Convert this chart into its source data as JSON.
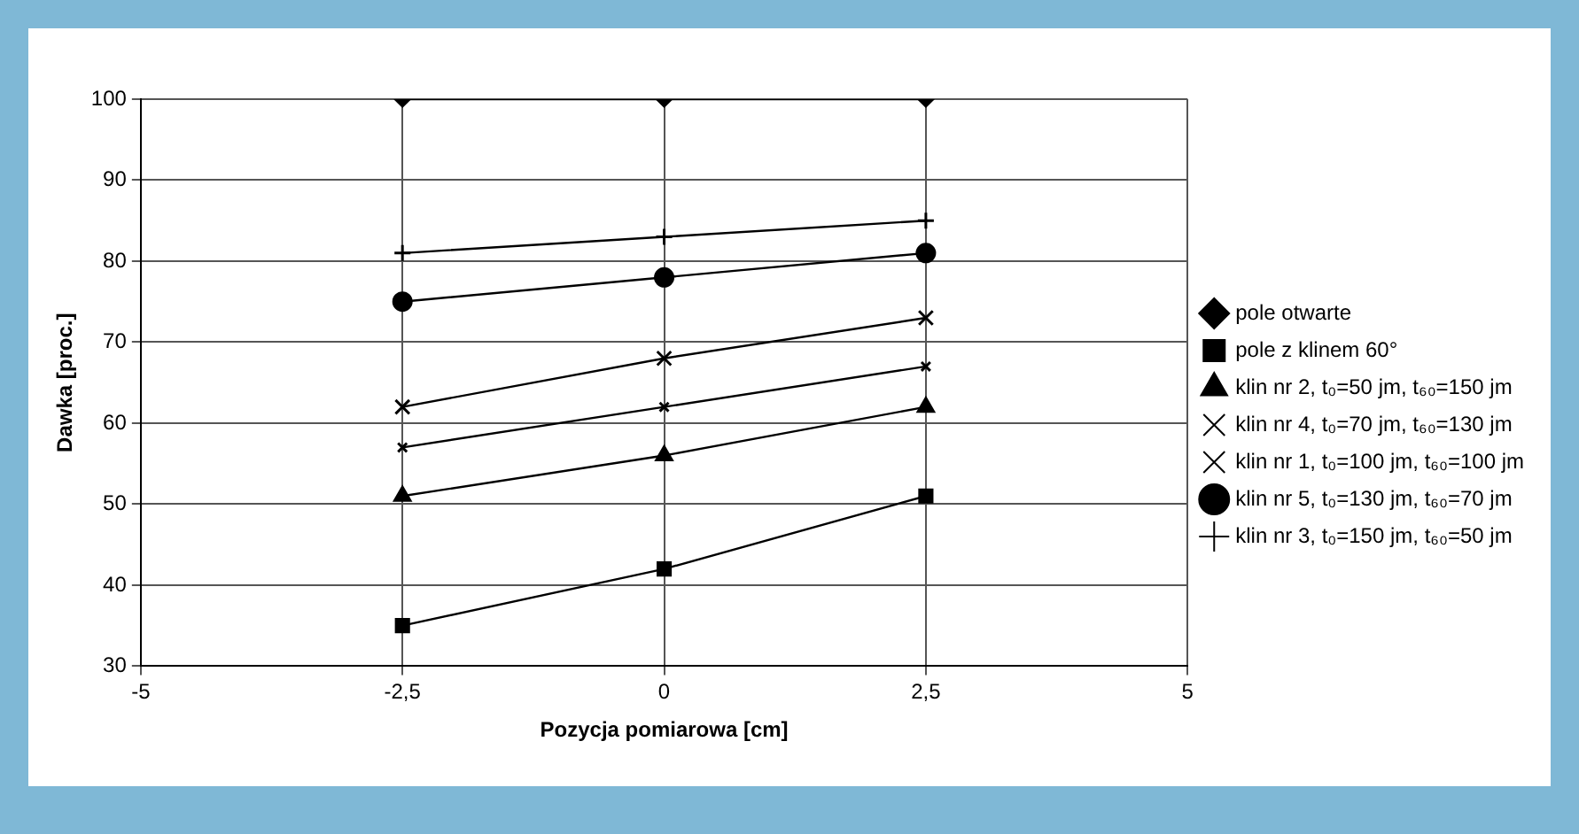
{
  "chart_data": {
    "type": "line",
    "xlabel": "Pozycja pomiarowa [cm]",
    "ylabel": "Dawka [proc.]",
    "x": [
      -2.5,
      0,
      2.5
    ],
    "xlim": [
      -5,
      5
    ],
    "xticks": [
      -5,
      {
        "value": -2.5,
        "label": "-2,5"
      },
      0,
      {
        "value": 2.5,
        "label": "2,5"
      },
      5
    ],
    "ylim": [
      30,
      100
    ],
    "yticks": [
      30,
      40,
      50,
      60,
      70,
      80,
      90,
      100
    ],
    "grid": true,
    "legend": "right",
    "line_style": "solid",
    "series": [
      {
        "name": "pole otwarte",
        "color": "#000000",
        "marker": "diamond",
        "values": [
          100,
          100,
          100
        ]
      },
      {
        "name": "pole z klinem 60°",
        "color": "#000000",
        "marker": "square",
        "values": [
          35,
          42,
          51
        ]
      },
      {
        "name": "klin nr 2, t₀=50 jm, t₆₀=150 jm",
        "color": "#000000",
        "marker": "triangle",
        "values": [
          51,
          56,
          62
        ]
      },
      {
        "name": "klin nr 4, t₀=70 jm, t₆₀=130 jm",
        "color": "#000000",
        "marker": "cross",
        "values": [
          57,
          62,
          67
        ]
      },
      {
        "name": "klin nr 1, t₀=100 jm, t₆₀=100 jm",
        "color": "#000000",
        "marker": "x",
        "values": [
          62,
          68,
          73
        ]
      },
      {
        "name": "klin nr 5, t₀=130 jm, t₆₀=70 jm",
        "color": "#000000",
        "marker": "circle",
        "values": [
          75,
          78,
          81
        ]
      },
      {
        "name": "klin nr 3, t₀=150 jm, t₆₀=50 jm",
        "color": "#000000",
        "marker": "plus",
        "values": [
          81,
          83,
          85
        ]
      }
    ]
  }
}
